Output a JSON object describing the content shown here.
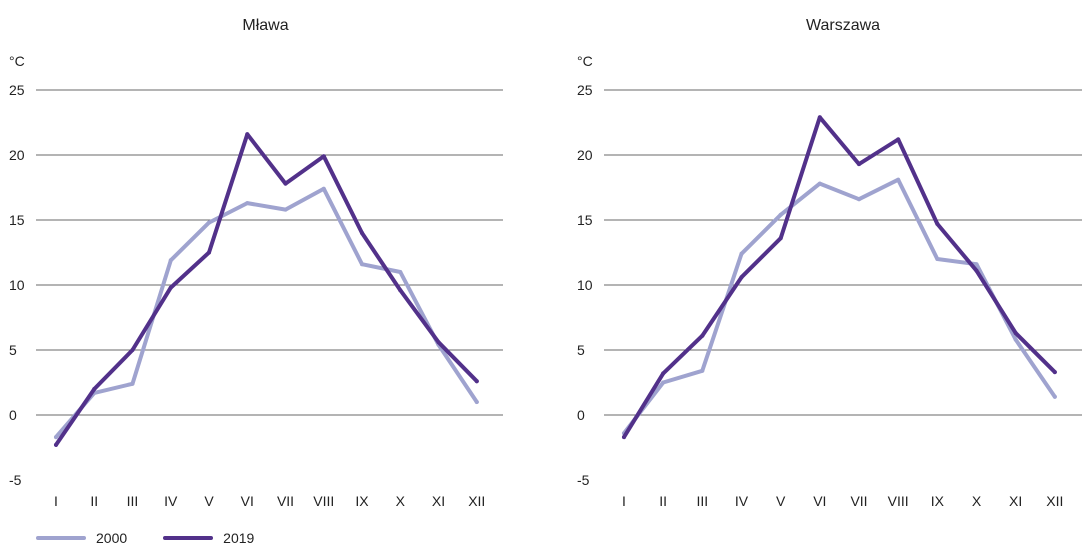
{
  "chart_data": [
    {
      "type": "line",
      "title": "Mława",
      "ylabel": "°C",
      "ylim": [
        -5,
        25
      ],
      "yticks": [
        -5,
        0,
        5,
        10,
        15,
        20,
        25
      ],
      "categories": [
        "I",
        "II",
        "III",
        "IV",
        "V",
        "VI",
        "VII",
        "VIII",
        "IX",
        "X",
        "XI",
        "XII"
      ],
      "grid": true,
      "series": [
        {
          "name": "2000",
          "color": "#9fa3cf",
          "values": [
            -1.7,
            1.7,
            2.4,
            11.9,
            14.8,
            16.3,
            15.8,
            17.4,
            11.6,
            11.0,
            5.4,
            1.0
          ]
        },
        {
          "name": "2019",
          "color": "#52318a",
          "values": [
            -2.3,
            2.0,
            5.0,
            9.8,
            12.5,
            21.6,
            17.8,
            19.9,
            14.0,
            9.6,
            5.6,
            2.6
          ]
        }
      ]
    },
    {
      "type": "line",
      "title": "Warszawa",
      "ylabel": "°C",
      "ylim": [
        -5,
        25
      ],
      "yticks": [
        -5,
        0,
        5,
        10,
        15,
        20,
        25
      ],
      "categories": [
        "I",
        "II",
        "III",
        "IV",
        "V",
        "VI",
        "VII",
        "VIII",
        "IX",
        "X",
        "XI",
        "XII"
      ],
      "grid": true,
      "series": [
        {
          "name": "2000",
          "color": "#9fa3cf",
          "values": [
            -1.4,
            2.5,
            3.4,
            12.4,
            15.4,
            17.8,
            16.6,
            18.1,
            12.0,
            11.6,
            5.8,
            1.4
          ]
        },
        {
          "name": "2019",
          "color": "#52318a",
          "values": [
            -1.7,
            3.2,
            6.1,
            10.6,
            13.6,
            22.9,
            19.3,
            21.2,
            14.7,
            11.1,
            6.3,
            3.3
          ]
        }
      ]
    }
  ],
  "legend": [
    {
      "label": "2000",
      "color": "#9fa3cf"
    },
    {
      "label": "2019",
      "color": "#52318a"
    }
  ]
}
